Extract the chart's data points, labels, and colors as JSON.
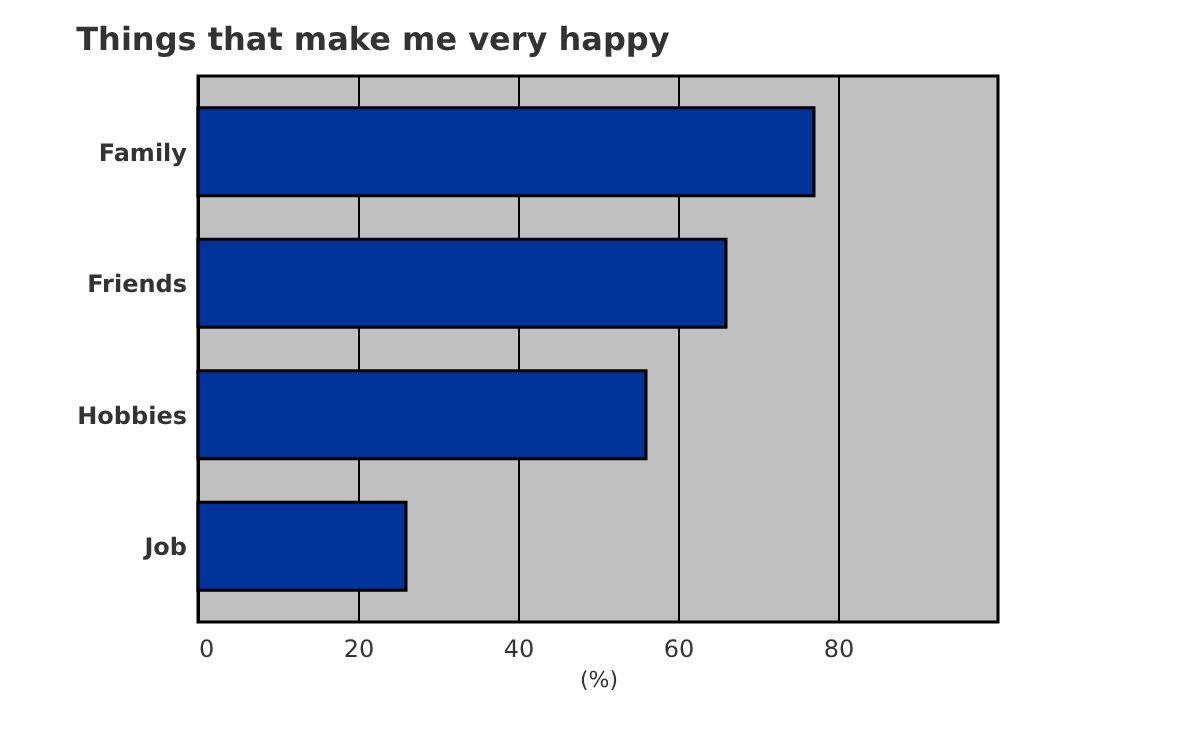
{
  "chart_data": {
    "type": "bar",
    "orientation": "horizontal",
    "title": "Things that make me very happy",
    "xlabel": "(%)",
    "categories": [
      "Family",
      "Friends",
      "Hobbies",
      "Job"
    ],
    "values": [
      77,
      66,
      56,
      26
    ],
    "color": "#003399",
    "xlim": [
      0,
      100
    ],
    "xticks": [
      0,
      20,
      40,
      60,
      80
    ],
    "grid": "x"
  }
}
